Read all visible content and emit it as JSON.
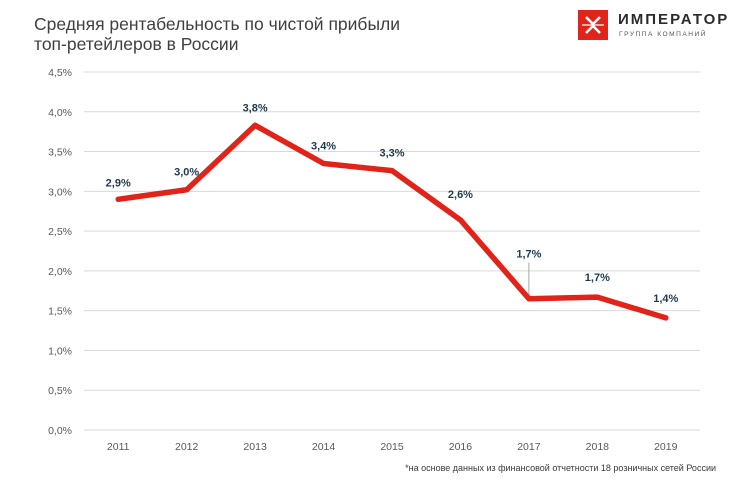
{
  "header": {
    "title_line1": "Средняя рентабельность по чистой прибыли",
    "title_line2": "топ-ретейлеров в России"
  },
  "brand": {
    "name": "ИМПЕРАТОР",
    "subtitle": "ГРУППА КОМПАНИЙ",
    "color": "#e2231a"
  },
  "footnote": "*на основе данных из финансовой отчетности 18 розничных сетей России",
  "chart_data": {
    "type": "line",
    "x": [
      "2011",
      "2012",
      "2013",
      "2014",
      "2015",
      "2016",
      "2017",
      "2018",
      "2019"
    ],
    "series": [
      {
        "values": [
          2.9,
          3.0,
          3.8,
          3.4,
          3.3,
          2.6,
          1.7,
          1.7,
          1.4
        ],
        "data_labels": [
          "2,9%",
          "3,0%",
          "3,8%",
          "3,4%",
          "3,3%",
          "2,6%",
          "1,7%",
          "1,7%",
          "1,4%"
        ],
        "plot_values": [
          2.9,
          3.02,
          3.83,
          3.35,
          3.26,
          2.64,
          1.65,
          1.67,
          1.41
        ],
        "color": "#e2231a"
      }
    ],
    "ylim": [
      0,
      4.5
    ],
    "y_ticks": [
      0,
      0.5,
      1.0,
      1.5,
      2.0,
      2.5,
      3.0,
      3.5,
      4.0,
      4.5
    ],
    "y_tick_labels": [
      "0,0%",
      "0,5%",
      "1,0%",
      "1,5%",
      "2,0%",
      "2,5%",
      "3,0%",
      "3,5%",
      "4,0%",
      "4,5%"
    ],
    "grid": true,
    "gridline_color": "#d9d9d9",
    "label_color": "#1f3a4d"
  }
}
